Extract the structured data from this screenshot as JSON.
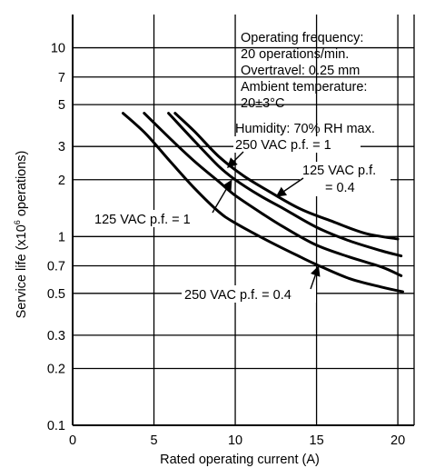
{
  "chart_data": {
    "type": "line",
    "xlabel": "Rated operating current (A)",
    "ylabel_prefix": "Service life (x10",
    "ylabel_sup": "6",
    "ylabel_suffix": " operations)",
    "xlim": [
      0,
      21
    ],
    "ylim": [
      0.1,
      15
    ],
    "y_scale": "log",
    "grid": true,
    "x_ticks": [
      {
        "value": 0,
        "label": "0"
      },
      {
        "value": 5,
        "label": "5"
      },
      {
        "value": 10,
        "label": "10"
      },
      {
        "value": 15,
        "label": "15"
      },
      {
        "value": 20,
        "label": "20"
      }
    ],
    "y_ticks": [
      {
        "value": 10,
        "label": "10"
      },
      {
        "value": 7,
        "label": "7"
      },
      {
        "value": 5,
        "label": "5"
      },
      {
        "value": 3,
        "label": "3"
      },
      {
        "value": 2,
        "label": "2"
      },
      {
        "value": 1,
        "label": "1"
      },
      {
        "value": 0.7,
        "label": "0.7"
      },
      {
        "value": 0.5,
        "label": "0.5"
      },
      {
        "value": 0.3,
        "label": "0.3"
      },
      {
        "value": 0.2,
        "label": "0.2"
      },
      {
        "value": 0.1,
        "label": "0.1"
      }
    ],
    "conditions": [
      "Operating frequency:",
      "20 operations/min.",
      "Overtravel: 0.25 mm",
      "Ambient temperature:",
      "20±3°C",
      "Humidity: 70% RH max."
    ],
    "series": [
      {
        "name": "125 VAC p.f. = 1",
        "x": [
          6.3,
          7.5,
          9,
          10.5,
          12,
          14,
          16,
          18,
          20
        ],
        "y": [
          4.5,
          3.6,
          2.65,
          2.1,
          1.75,
          1.4,
          1.2,
          1.04,
          0.97
        ]
      },
      {
        "name": "250 VAC p.f. = 1",
        "x": [
          5.9,
          7.5,
          9,
          10,
          11.5,
          13,
          15,
          17,
          19,
          20.2
        ],
        "y": [
          4.5,
          3.2,
          2.35,
          2.0,
          1.65,
          1.4,
          1.12,
          0.95,
          0.84,
          0.79
        ]
      },
      {
        "name": "125 VAC p.f. = 0.4",
        "x": [
          4.4,
          6,
          7.5,
          9,
          10,
          11.5,
          13,
          15,
          17,
          19,
          20.2
        ],
        "y": [
          4.5,
          3.3,
          2.5,
          1.95,
          1.65,
          1.35,
          1.12,
          0.9,
          0.78,
          0.69,
          0.62
        ]
      },
      {
        "name": "250 VAC p.f. = 0.4",
        "x": [
          3.1,
          4.5,
          6,
          7.5,
          9,
          10,
          12,
          14,
          15,
          17,
          19,
          20.3
        ],
        "y": [
          4.5,
          3.5,
          2.5,
          1.8,
          1.35,
          1.18,
          0.95,
          0.78,
          0.71,
          0.6,
          0.54,
          0.51
        ]
      }
    ],
    "labels": {
      "s125pf1": "125 VAC p.f. = 1",
      "s250pf1": "250 VAC p.f. = 1",
      "s125pf04_a": "125 VAC p.f.",
      "s125pf04_b": "= 0.4",
      "s250pf04": "250 VAC p.f. = 0.4"
    }
  }
}
